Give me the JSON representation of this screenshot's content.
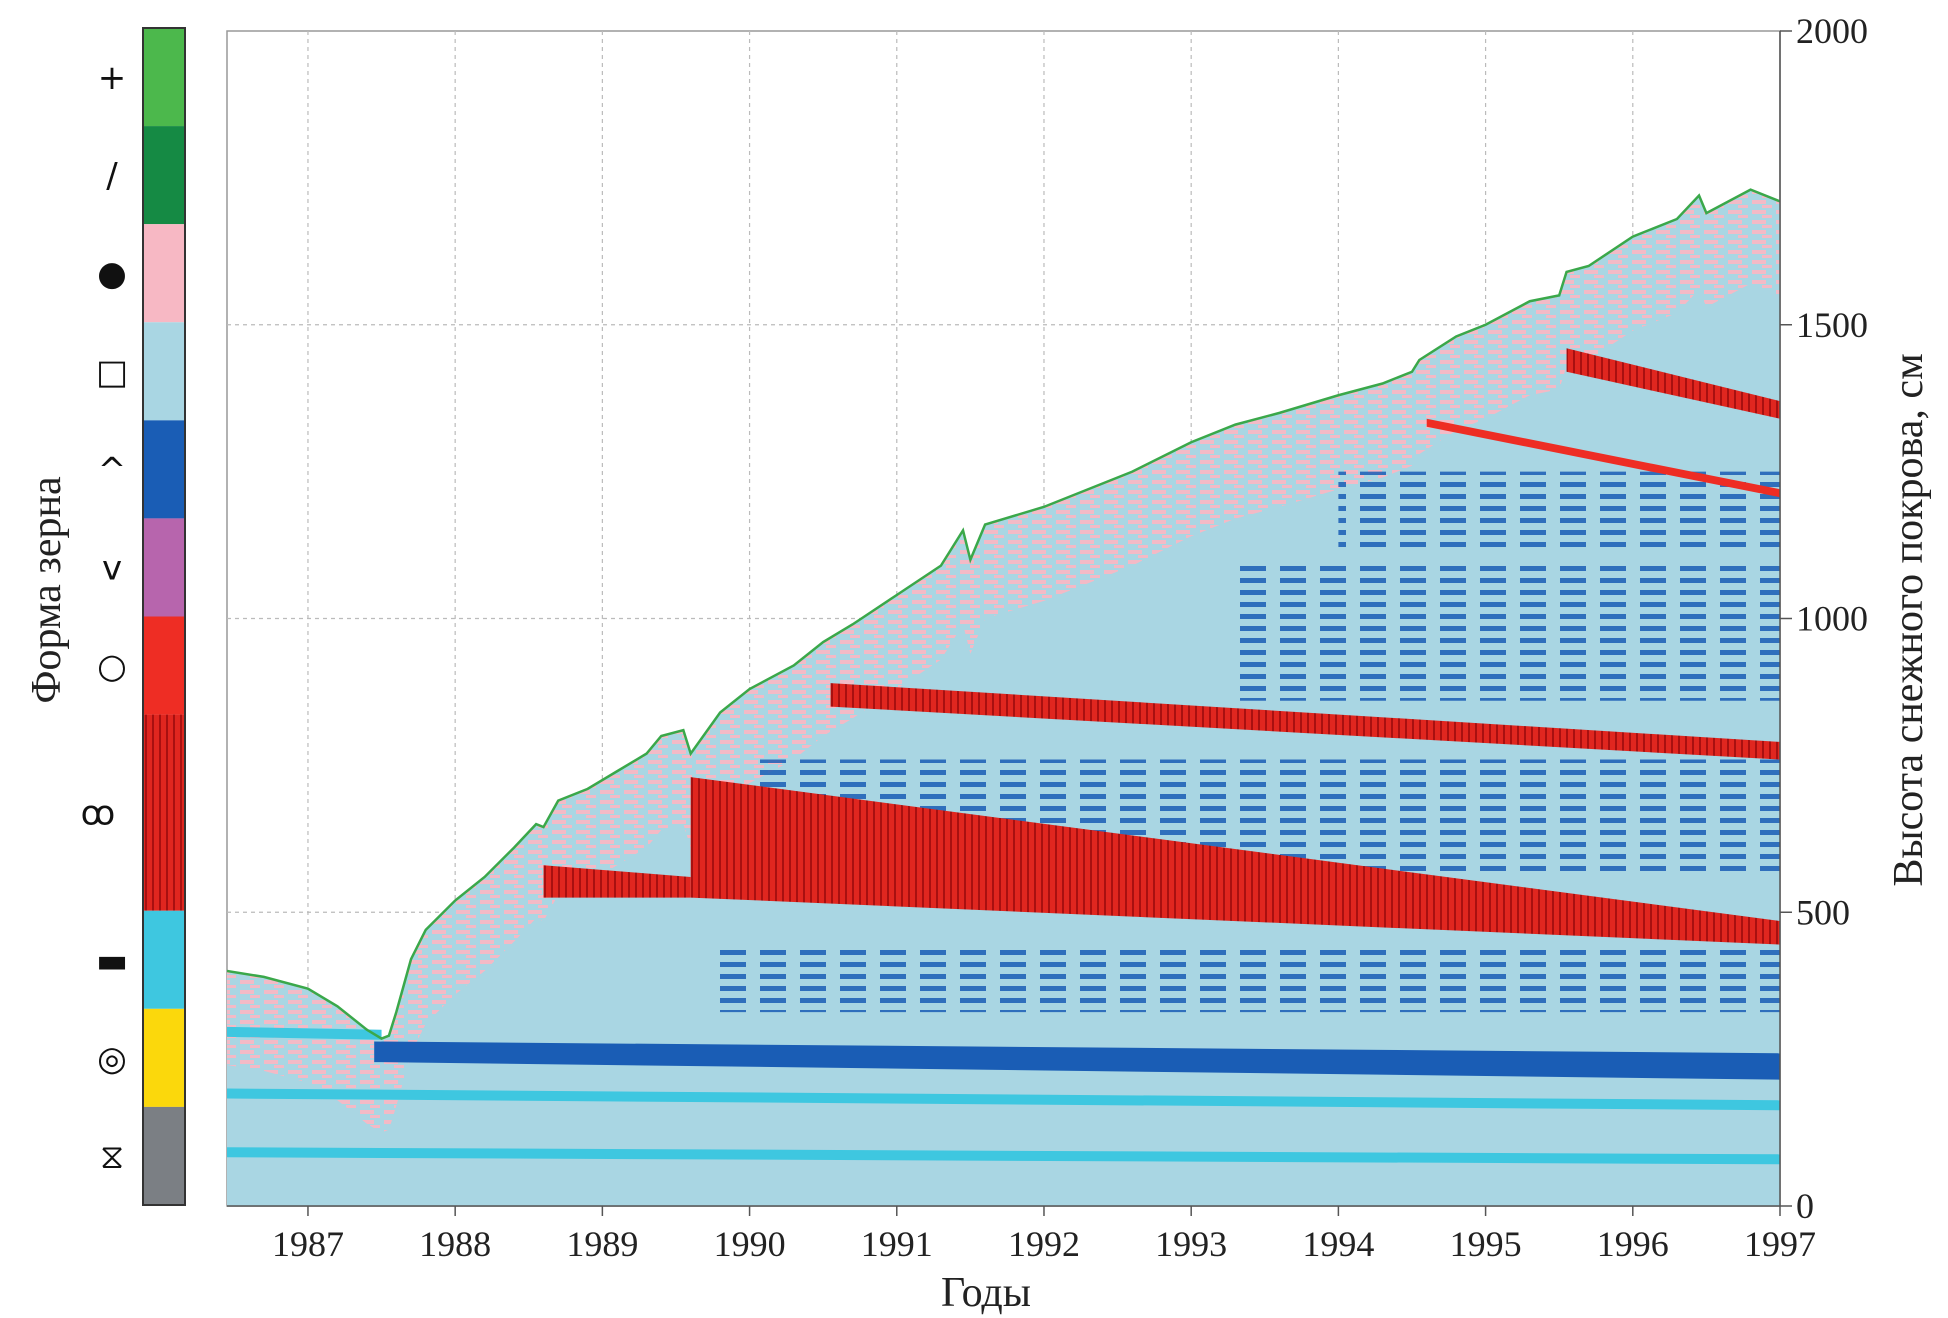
{
  "chart_data": {
    "type": "area",
    "xlabel": "Годы",
    "ylabel": "Высота снежного покрова, см",
    "x_ticks": [
      "1987",
      "1988",
      "1989",
      "1990",
      "1991",
      "1992",
      "1993",
      "1994",
      "1995",
      "1996",
      "1997"
    ],
    "y_ticks": [
      "0",
      "500",
      "1000",
      "1500",
      "2000"
    ],
    "xlim": [
      1986.45,
      1997.0
    ],
    "ylim": [
      0,
      2000
    ],
    "grid": true,
    "y_axis_side": "right",
    "colorbar": {
      "title": "Форма зерна",
      "placement": "left",
      "classes": [
        {
          "symbol": "+",
          "color": "#4cb84c"
        },
        {
          "symbol": "/",
          "color": "#158a44"
        },
        {
          "symbol": "●",
          "color": "#f7b8c4"
        },
        {
          "symbol": "□",
          "color": "#a9d6e3"
        },
        {
          "symbol": "^",
          "color": "#1a5db5"
        },
        {
          "symbol": "v",
          "color": "#b765ad"
        },
        {
          "symbol": "○",
          "color": "#ee2d24"
        },
        {
          "symbol": "ꝏ",
          "color": "#e0261f",
          "hatched": true
        },
        {
          "symbol": "▬",
          "color": "#3ec7e0"
        },
        {
          "symbol": "◎",
          "color": "#fbd80c"
        },
        {
          "symbol": "⧖",
          "color": "#7b7f84"
        }
      ]
    },
    "snow_surface": {
      "years": [
        1986.45,
        1986.7,
        1987.0,
        1987.2,
        1987.4,
        1987.5,
        1987.55,
        1987.6,
        1987.7,
        1987.8,
        1988.0,
        1988.2,
        1988.4,
        1988.55,
        1988.6,
        1988.7,
        1988.9,
        1989.1,
        1989.3,
        1989.4,
        1989.55,
        1989.6,
        1989.8,
        1990.0,
        1990.3,
        1990.5,
        1990.7,
        1991.0,
        1991.3,
        1991.45,
        1991.5,
        1991.6,
        1992.0,
        1992.3,
        1992.6,
        1993.0,
        1993.3,
        1993.6,
        1994.0,
        1994.3,
        1994.5,
        1994.55,
        1994.8,
        1995.0,
        1995.3,
        1995.5,
        1995.55,
        1995.7,
        1996.0,
        1996.3,
        1996.45,
        1996.5,
        1996.8,
        1997.0
      ],
      "height": [
        400,
        390,
        370,
        340,
        300,
        285,
        290,
        330,
        420,
        470,
        520,
        560,
        610,
        650,
        645,
        690,
        710,
        740,
        770,
        800,
        810,
        770,
        840,
        880,
        920,
        960,
        990,
        1040,
        1090,
        1150,
        1100,
        1160,
        1190,
        1220,
        1250,
        1300,
        1330,
        1350,
        1380,
        1400,
        1420,
        1440,
        1480,
        1500,
        1540,
        1550,
        1590,
        1600,
        1650,
        1680,
        1720,
        1690,
        1730,
        1710
      ]
    },
    "layers": [
      {
        "class": "▬",
        "start": 1986.45,
        "end": 1997.0,
        "y0": 100,
        "y1": 88
      },
      {
        "class": "▬",
        "start": 1986.45,
        "end": 1997.0,
        "y0": 200,
        "y1": 180
      },
      {
        "class": "▬",
        "start": 1986.45,
        "end": 1987.5,
        "y0": 305,
        "y1": 300
      },
      {
        "class": "^",
        "start": 1987.45,
        "end": 1997.0,
        "y0": 280,
        "y1": 215
      },
      {
        "class": "ꝏ",
        "start": 1988.6,
        "end": 1989.6,
        "y0": 580,
        "y1": 530
      },
      {
        "class": "ꝏ",
        "start": 1989.6,
        "end": 1997.0,
        "y0": 730,
        "y1": 445
      },
      {
        "class": "ꝏ",
        "start": 1990.55,
        "end": 1997.0,
        "y0": 890,
        "y1": 760
      },
      {
        "class": "ꝏ",
        "start": 1995.55,
        "end": 1997.0,
        "y0": 1460,
        "y1": 1340
      },
      {
        "class": "○",
        "start": 1994.6,
        "end": 1997.0,
        "y0": 1340,
        "y1": 1220
      }
    ]
  }
}
